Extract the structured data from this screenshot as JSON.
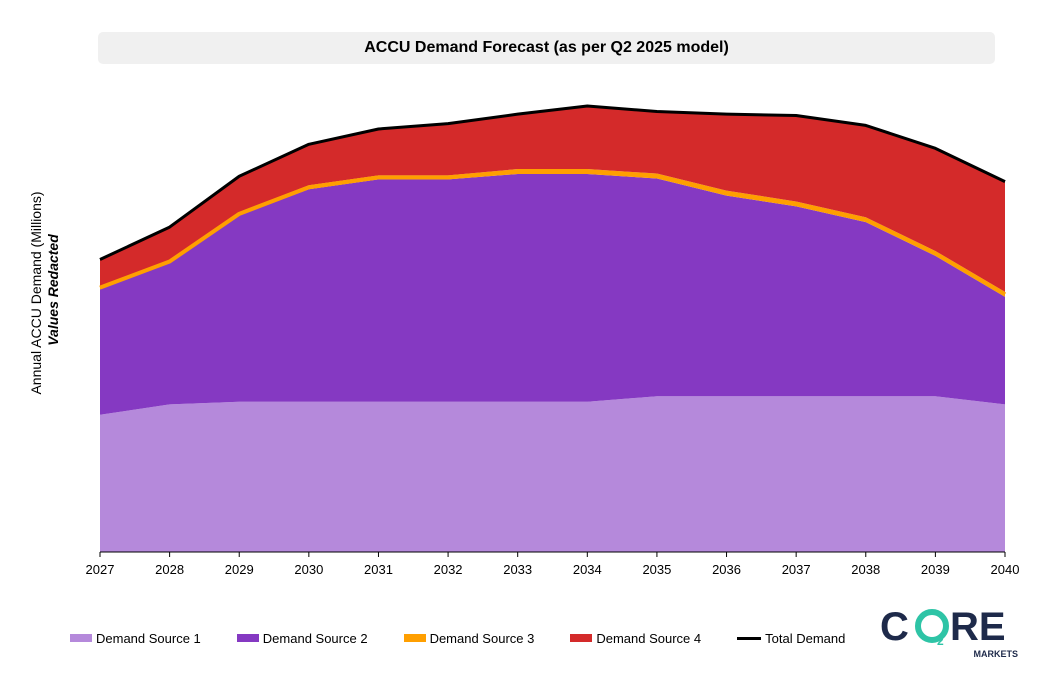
{
  "chart_title": "ACCU Demand Forecast (as per Q2 2025 model)",
  "chart_data": {
    "type": "area",
    "title": "ACCU Demand Forecast (as per Q2 2025 model)",
    "xlabel": "",
    "ylabel": "Annual ACCU Demand (Millions)",
    "ylabel_note": "Values Redacted",
    "x": [
      "2027",
      "2028",
      "2029",
      "2030",
      "2031",
      "2032",
      "2033",
      "2034",
      "2035",
      "2036",
      "2037",
      "2038",
      "2039",
      "2040"
    ],
    "ylim": [
      0,
      100
    ],
    "stacked": true,
    "series": [
      {
        "name": "Demand Source 1",
        "color": "#b589db",
        "values": [
          30.5,
          32.8,
          33.4,
          33.4,
          33.4,
          33.4,
          33.4,
          33.4,
          34.6,
          34.6,
          34.6,
          34.6,
          34.6,
          32.8
        ]
      },
      {
        "name": "Demand Source 2",
        "color": "#8539c2",
        "values": [
          27.9,
          31.4,
          41.4,
          47.2,
          49.4,
          49.4,
          50.6,
          50.6,
          48.4,
          44.6,
          42.2,
          38.7,
          31.2,
          23.9
        ]
      },
      {
        "name": "Demand Source 3",
        "color": "#ff9f00",
        "values": [
          0.7,
          0.7,
          0.7,
          0.9,
          0.9,
          0.9,
          1.1,
          1.1,
          1.1,
          1.1,
          1.1,
          1.1,
          1.1,
          1.1
        ]
      },
      {
        "name": "Demand Source 4",
        "color": "#d42a2a",
        "values": [
          5.9,
          7.3,
          8.0,
          9.1,
          10.3,
          11.5,
          12.2,
          14.0,
          13.8,
          17.0,
          19.1,
          20.4,
          22.8,
          24.5
        ]
      }
    ],
    "total": {
      "name": "Total Demand",
      "color": "#000000",
      "values": [
        65.0,
        72.2,
        83.5,
        90.6,
        94.0,
        95.2,
        97.3,
        99.1,
        97.9,
        97.3,
        97.0,
        94.8,
        89.7,
        82.3
      ]
    },
    "grid": false,
    "legend_position": "bottom"
  },
  "legend": [
    {
      "label": "Demand Source 1",
      "color": "#b589db",
      "kind": "area"
    },
    {
      "label": "Demand Source 2",
      "color": "#8539c2",
      "kind": "area"
    },
    {
      "label": "Demand Source 3",
      "color": "#ff9f00",
      "kind": "area"
    },
    {
      "label": "Demand Source 4",
      "color": "#d42a2a",
      "kind": "area"
    },
    {
      "label": "Total Demand",
      "color": "#000000",
      "kind": "line"
    }
  ],
  "logo": {
    "main_text_c": "C",
    "main_text_re": "RE",
    "subscript": "2",
    "sub_label": "MARKETS",
    "dark_color": "#1e2a4a",
    "accent_color": "#2ec4a6"
  }
}
